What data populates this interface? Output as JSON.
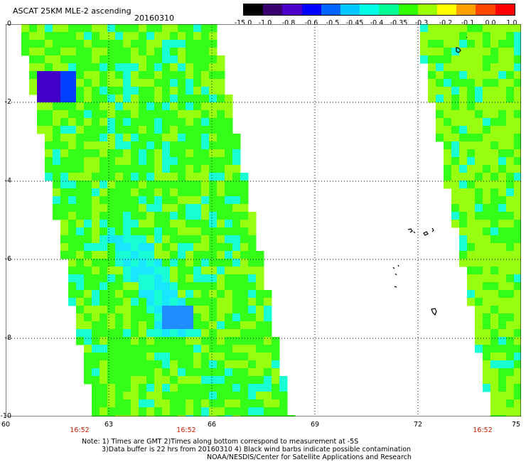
{
  "header": {
    "title": "ASCAT 25KM MLE-2 ascending",
    "date": "20160310"
  },
  "colorbar": {
    "labels": [
      "-15.0",
      "-1.0",
      "-0.8",
      "-0.6",
      "-0.5",
      "-0.45",
      "-0.4",
      "-0.35",
      "-0.3",
      "-0.2",
      "-0.1",
      "0.0",
      "1.0"
    ],
    "colors": [
      "#000000",
      "#3a006e",
      "#4d00c8",
      "#0000ff",
      "#0064ff",
      "#00c8ff",
      "#00ffe6",
      "#00ff96",
      "#32ff00",
      "#9bff00",
      "#ffff00",
      "#ffa000",
      "#ff4600",
      "#ff0000"
    ]
  },
  "axes": {
    "x_ticks": [
      "60",
      "63",
      "66",
      "69",
      "72",
      "75"
    ],
    "y_ticks": [
      "0",
      "-2",
      "-4",
      "-6",
      "-8",
      "-10"
    ],
    "times": [
      "16:52",
      "16:52",
      "16:52"
    ]
  },
  "notes": {
    "line1": "Note: 1) Times are GMT 2)Times along bottom correspond to measurement at -5S",
    "line2": "3)Data buffer is 22 hrs from 20160310 4) Black wind barbs indicate possible contamination",
    "line3": "NOAA/NESDIS/Center for Satellite Applications and Research"
  },
  "colors": {
    "background": "#ffffff",
    "swath_green": "#33ff19",
    "swath_lime": "#99ff11",
    "swath_cyan": "#19ffd4",
    "low_blue": "#0040ff",
    "purple": "#4000c8"
  }
}
